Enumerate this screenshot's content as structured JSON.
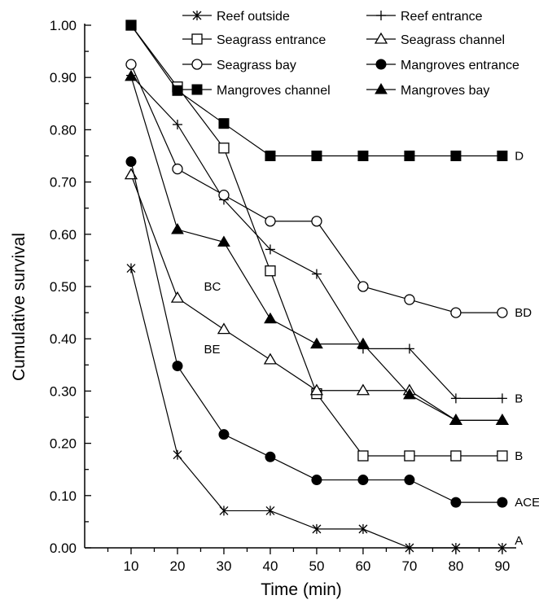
{
  "chart_data": {
    "type": "line",
    "title": "",
    "xlabel": "Time (min)",
    "ylabel": "Cumulative survival",
    "x": [
      10,
      20,
      30,
      40,
      50,
      60,
      70,
      80,
      90
    ],
    "xticks": [
      "10",
      "20",
      "30",
      "40",
      "50",
      "60",
      "70",
      "80",
      "90"
    ],
    "xlim": [
      0,
      93
    ],
    "yticks": [
      "0.00",
      "0.10",
      "0.20",
      "0.30",
      "0.40",
      "0.50",
      "0.60",
      "0.70",
      "0.80",
      "0.90",
      "1.00"
    ],
    "ylim": [
      0,
      1.0
    ],
    "grid": false,
    "legend_position": "top-right",
    "series": [
      {
        "name": "Reef outside",
        "marker": "asterisk",
        "values": [
          0.535,
          0.178,
          0.071,
          0.071,
          0.036,
          0.036,
          0.0,
          0.0,
          0.0
        ]
      },
      {
        "name": "Reef entrance",
        "marker": "plus",
        "values": [
          0.904,
          0.81,
          0.666,
          0.571,
          0.524,
          0.381,
          0.381,
          0.286,
          0.286
        ]
      },
      {
        "name": "Seagrass entrance",
        "marker": "open-square",
        "values": [
          1.0,
          0.882,
          0.765,
          0.53,
          0.295,
          0.176,
          0.176,
          0.176,
          0.176
        ]
      },
      {
        "name": "Seagrass channel",
        "marker": "open-triangle",
        "values": [
          0.714,
          0.478,
          0.418,
          0.36,
          0.301,
          0.301,
          0.301,
          0.244,
          0.244
        ]
      },
      {
        "name": "Seagrass bay",
        "marker": "open-circle",
        "values": [
          0.925,
          0.725,
          0.675,
          0.625,
          0.625,
          0.5,
          0.475,
          0.45,
          0.45
        ]
      },
      {
        "name": "Mangroves entrance",
        "marker": "filled-circle",
        "values": [
          0.739,
          0.348,
          0.217,
          0.174,
          0.13,
          0.13,
          0.13,
          0.087,
          0.087
        ]
      },
      {
        "name": "Mangroves channel",
        "marker": "filled-square",
        "values": [
          1.0,
          0.875,
          0.812,
          0.75,
          0.75,
          0.75,
          0.75,
          0.75,
          0.75
        ]
      },
      {
        "name": "Mangroves bay",
        "marker": "filled-triangle",
        "values": [
          0.902,
          0.609,
          0.585,
          0.438,
          0.39,
          0.39,
          0.293,
          0.244,
          0.244
        ]
      }
    ],
    "annotations": [
      {
        "text": "D",
        "x": 92,
        "y": 0.75
      },
      {
        "text": "BD",
        "x": 92,
        "y": 0.45
      },
      {
        "text": "B",
        "x": 92,
        "y": 0.286
      },
      {
        "text": "B",
        "x": 92,
        "y": 0.176
      },
      {
        "text": "ACE",
        "x": 92,
        "y": 0.087
      },
      {
        "text": "A",
        "x": 92,
        "y": 0.014
      },
      {
        "text": "BC",
        "x": 25,
        "y": 0.5
      },
      {
        "text": "BE",
        "x": 25,
        "y": 0.38
      }
    ]
  }
}
